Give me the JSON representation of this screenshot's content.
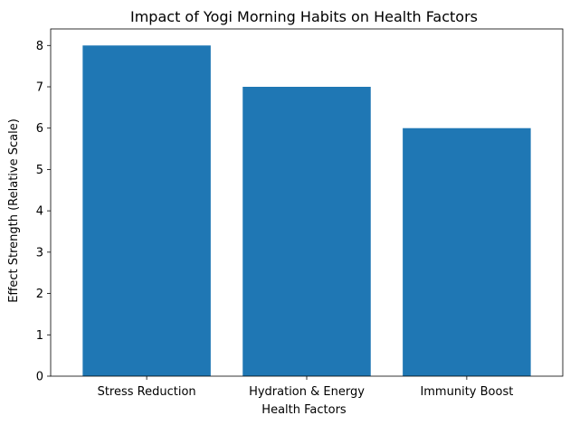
{
  "chart_data": {
    "type": "bar",
    "title": "Impact of Yogi Morning Habits on Health Factors",
    "xlabel": "Health Factors",
    "ylabel": "Effect Strength (Relative Scale)",
    "categories": [
      "Stress Reduction",
      "Hydration & Energy",
      "Immunity Boost"
    ],
    "values": [
      8,
      7,
      6
    ],
    "ylim": [
      0,
      8.4
    ],
    "yticks": [
      0,
      1,
      2,
      3,
      4,
      5,
      6,
      7,
      8
    ],
    "bar_color": "#1f77b4",
    "grid": false,
    "legend": "none"
  }
}
